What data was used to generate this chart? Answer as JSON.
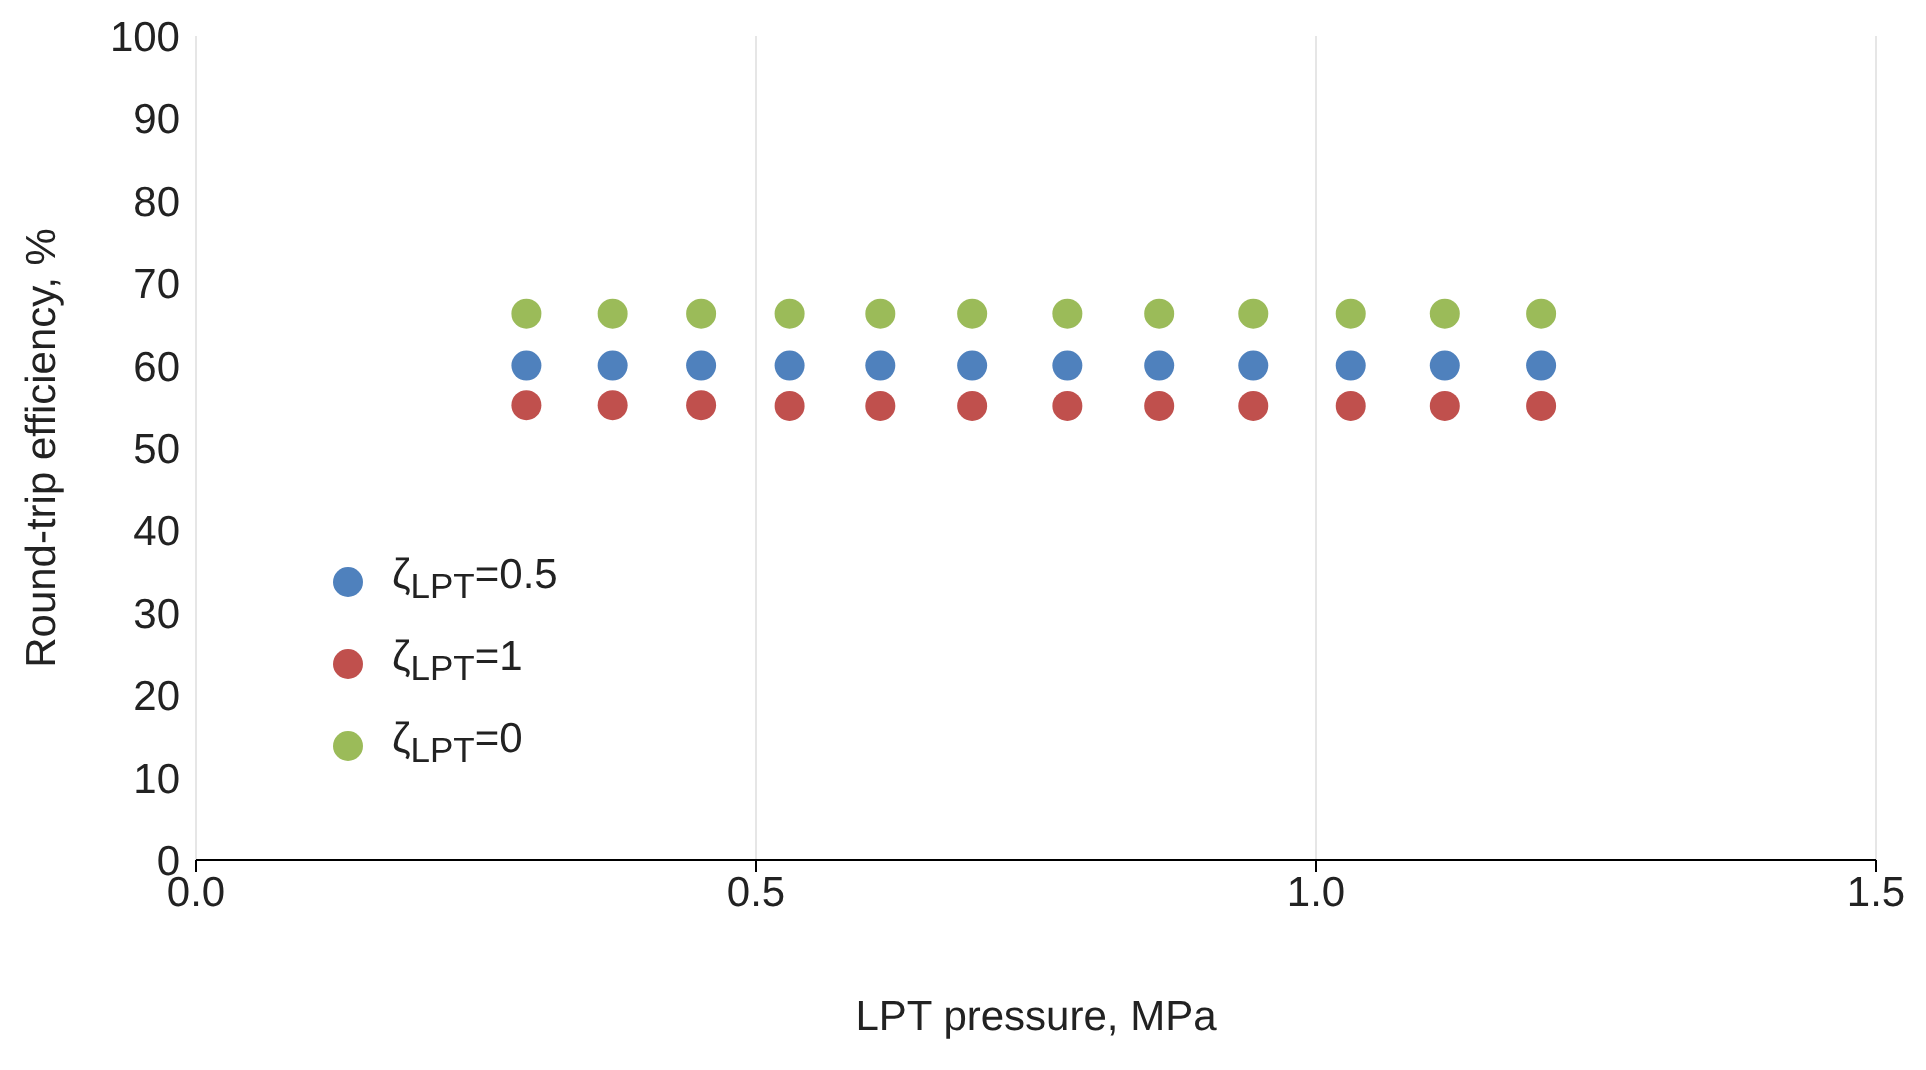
{
  "chart_data": {
    "type": "scatter",
    "xlabel": "LPT pressure, MPa",
    "ylabel": "Round-trip efficiency, %",
    "x": [
      0.295,
      0.372,
      0.451,
      0.53,
      0.611,
      0.693,
      0.778,
      0.86,
      0.944,
      1.031,
      1.115,
      1.201
    ],
    "series": [
      {
        "name": "ζ$_{LPT}$=0.5",
        "color": "#4f81bd",
        "values": [
          60,
          60,
          60,
          60,
          60,
          60,
          60,
          60,
          60,
          60,
          60,
          60
        ]
      },
      {
        "name": "ζ$_{LPT}$=1",
        "color": "#c0504d",
        "values": [
          55.2,
          55.2,
          55.2,
          55.1,
          55.1,
          55.1,
          55.1,
          55.1,
          55.1,
          55.1,
          55.1,
          55.1
        ]
      },
      {
        "name": "ζ$_{LPT}$=0",
        "color": "#9bbb59",
        "values": [
          66.3,
          66.3,
          66.3,
          66.3,
          66.3,
          66.3,
          66.3,
          66.3,
          66.3,
          66.3,
          66.3,
          66.3
        ]
      }
    ],
    "xlim": [
      0,
      1.5
    ],
    "xticks": [
      {
        "value": 0,
        "label": "0.0"
      },
      0.5,
      {
        "value": 1,
        "label": "1.0"
      },
      1.5
    ],
    "ylim": [
      0,
      100
    ],
    "yticks": [
      0,
      10,
      20,
      30,
      40,
      50,
      60,
      70,
      80,
      90,
      100
    ],
    "grid": "x",
    "legend": "left",
    "marker": "circle"
  }
}
